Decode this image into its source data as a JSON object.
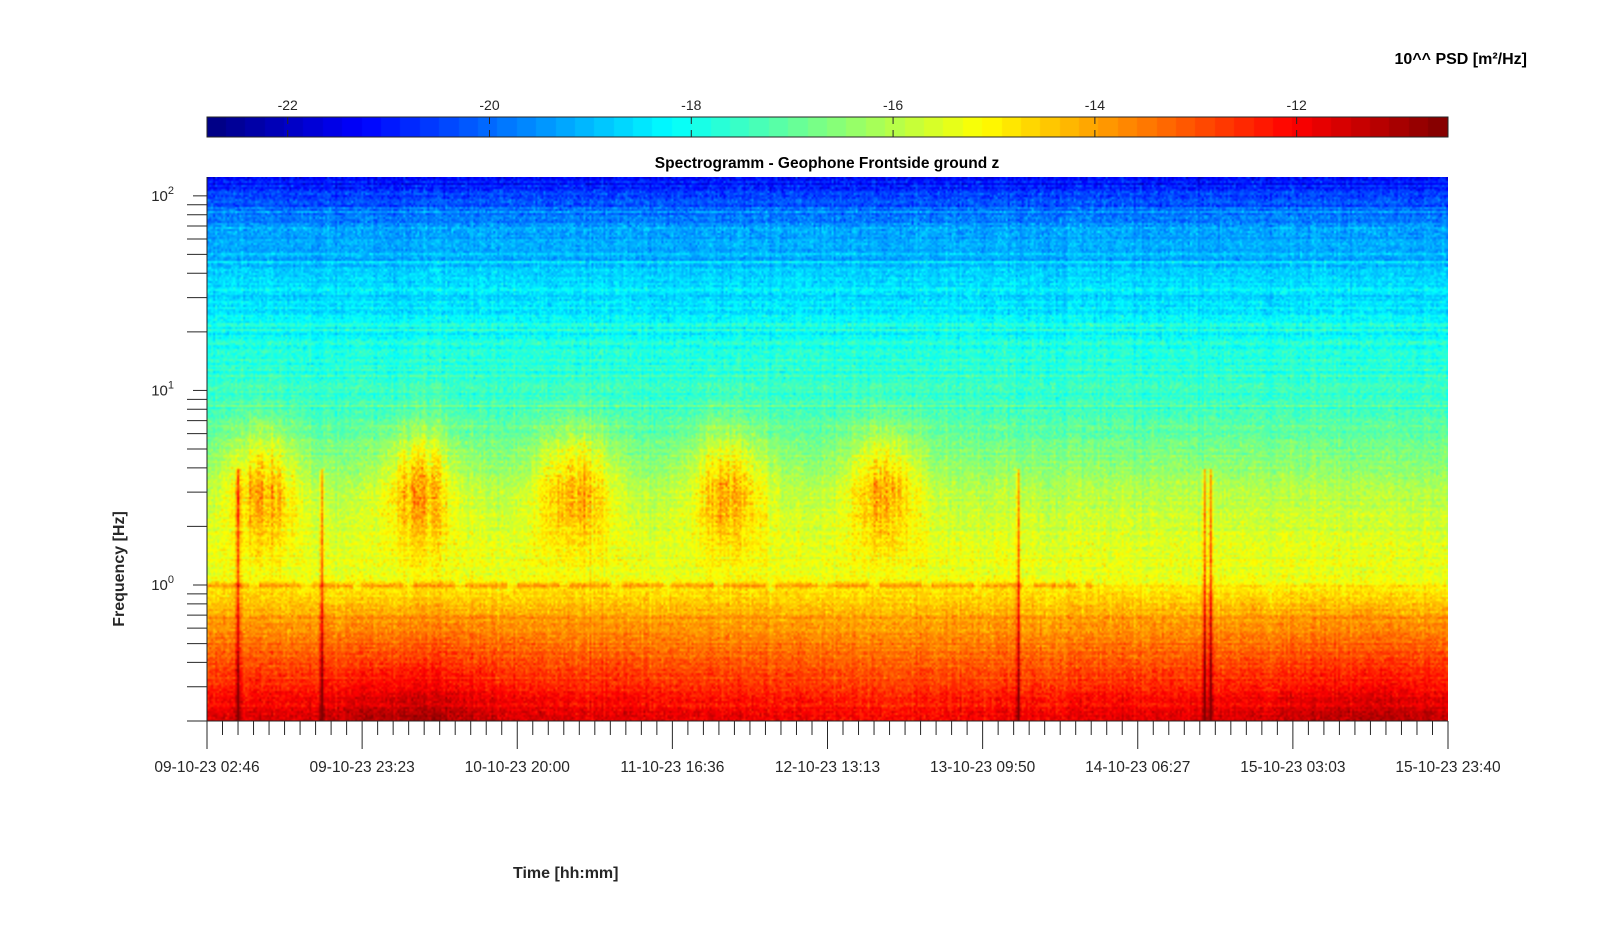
{
  "chart_data": {
    "type": "heatmap",
    "title": "Spectrogramm - Geophone Frontside ground z",
    "xlabel": "Time [hh:mm]",
    "ylabel": "Frequency [Hz]",
    "x_ticks": [
      "09-10-23 02:46",
      "09-10-23 23:23",
      "10-10-23 20:00",
      "11-10-23 16:36",
      "12-10-23 13:13",
      "13-10-23 09:50",
      "14-10-23 06:27",
      "15-10-23 03:03",
      "15-10-23 23:40"
    ],
    "y_scale": "log",
    "y_ticks": [
      {
        "base": "10",
        "exp": "0",
        "value": 1
      },
      {
        "base": "10",
        "exp": "1",
        "value": 10
      },
      {
        "base": "10",
        "exp": "2",
        "value": 100
      }
    ],
    "ylim": [
      0.2,
      125
    ],
    "colorbar": {
      "label": "10^^ PSD [m²/Hz]",
      "ticks": [
        "-22",
        "-20",
        "-18",
        "-16",
        "-14",
        "-12"
      ],
      "tick_values": [
        -22,
        -20,
        -18,
        -16,
        -14,
        -12
      ],
      "range": [
        -22.8,
        -10.5
      ],
      "colormap": "jet",
      "position": "top"
    },
    "features": {
      "background_levels": [
        {
          "freq": 0.2,
          "level": -11.7
        },
        {
          "freq": 0.3,
          "level": -12.4
        },
        {
          "freq": 0.45,
          "level": -13.2
        },
        {
          "freq": 0.75,
          "level": -14.2
        },
        {
          "freq": 1.0,
          "level": -15.2
        },
        {
          "freq": 1.6,
          "level": -15.5
        },
        {
          "freq": 2.5,
          "level": -15.8
        },
        {
          "freq": 4.0,
          "level": -16.4
        },
        {
          "freq": 6.0,
          "level": -17.0
        },
        {
          "freq": 10,
          "level": -17.5
        },
        {
          "freq": 20,
          "level": -18.0
        },
        {
          "freq": 40,
          "level": -18.7
        },
        {
          "freq": 70,
          "level": -19.5
        },
        {
          "freq": 100,
          "level": -20.5
        },
        {
          "freq": 125,
          "level": -21.3
        }
      ],
      "daytime_activity": [
        {
          "day": "09-10-23",
          "level": -14.2,
          "peak_freq": 3.2
        },
        {
          "day": "10-10-23",
          "level": -14.0,
          "peak_freq": 3.2
        },
        {
          "day": "11-10-23",
          "level": -14.0,
          "peak_freq": 3.2
        },
        {
          "day": "12-10-23",
          "level": -14.0,
          "peak_freq": 3.2
        },
        {
          "day": "13-10-23",
          "level": -14.4,
          "peak_freq": 3.5
        }
      ],
      "line_1hz_level": -14.3,
      "impulsive_events": [
        {
          "time": "09-10-23 07:30",
          "level": -12.5
        },
        {
          "time": "09-10-23 20:30",
          "level": -12.5
        },
        {
          "time": "13-10-23 08:00",
          "level": -12.2
        },
        {
          "time": "14-10-23 13:00",
          "level": -11.8
        },
        {
          "time": "14-10-23 14:00",
          "level": -11.8
        }
      ]
    }
  }
}
